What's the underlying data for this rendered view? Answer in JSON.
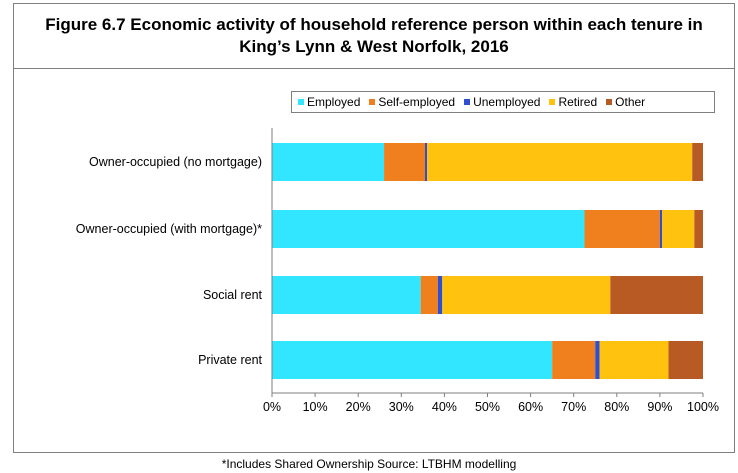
{
  "title": {
    "line1": "Figure 6.7 Economic activity of household reference person within each tenure in",
    "line2": "King’s Lynn & West Norfolk, 2016"
  },
  "legend": [
    {
      "name": "Employed",
      "color": "#33e6ff"
    },
    {
      "name": "Self-employed",
      "color": "#f07f1e"
    },
    {
      "name": "Unemployed",
      "color": "#2f4fd0"
    },
    {
      "name": "Retired",
      "color": "#ffc20e"
    },
    {
      "name": "Other",
      "color": "#b85a24"
    }
  ],
  "source_note": "*Includes Shared Ownership Source: LTBHM modelling",
  "chart_data": {
    "type": "bar",
    "orientation": "horizontal",
    "stacked": true,
    "categories": [
      "Owner-occupied (no mortgage)",
      "Owner-occupied (with mortgage)*",
      "Social rent",
      "Private rent"
    ],
    "series": [
      {
        "name": "Employed",
        "color": "#33e6ff",
        "values": [
          26,
          72.5,
          34.5,
          65
        ]
      },
      {
        "name": "Self-employed",
        "color": "#f07f1e",
        "values": [
          9.5,
          17.5,
          4,
          10
        ]
      },
      {
        "name": "Unemployed",
        "color": "#2f4fd0",
        "values": [
          0.5,
          0.5,
          1,
          1
        ]
      },
      {
        "name": "Retired",
        "color": "#ffc20e",
        "values": [
          61.5,
          7.5,
          39,
          16
        ]
      },
      {
        "name": "Other",
        "color": "#b85a24",
        "values": [
          2.5,
          2,
          21.5,
          8
        ]
      }
    ],
    "x_ticks": [
      "0%",
      "10%",
      "20%",
      "30%",
      "40%",
      "50%",
      "60%",
      "70%",
      "80%",
      "90%",
      "100%"
    ],
    "xlim": [
      0,
      100
    ],
    "grid": false,
    "legend_position": "top-right"
  }
}
